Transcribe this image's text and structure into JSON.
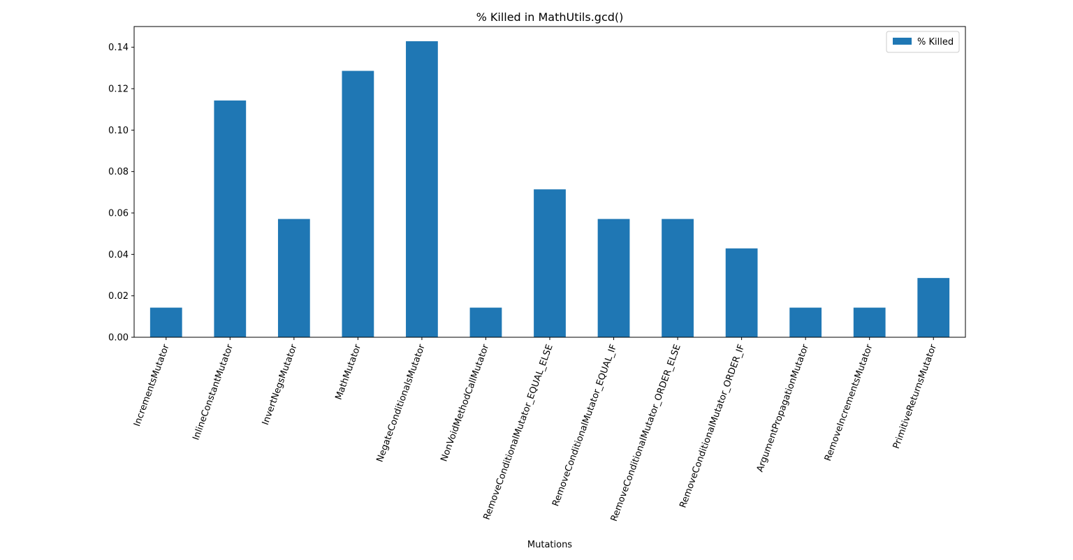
{
  "chart_data": {
    "type": "bar",
    "title": "% Killed in MathUtils.gcd()",
    "xlabel": "Mutations",
    "ylabel": "",
    "categories": [
      "IncrementsMutator",
      "InlineConstantMutator",
      "InvertNegsMutator",
      "MathMutator",
      "NegateConditionalsMutator",
      "NonVoidMethodCallMutator",
      "RemoveConditionalMutator_EQUAL_ELSE",
      "RemoveConditionalMutator_EQUAL_IF",
      "RemoveConditionalMutator_ORDER_ELSE",
      "RemoveConditionalMutator_ORDER_IF",
      "ArgumentPropagationMutator",
      "RemoveIncrementsMutator",
      "PrimitiveReturnsMutator"
    ],
    "series": [
      {
        "name": "% Killed",
        "color": "#1f77b4",
        "values": [
          0.0143,
          0.1143,
          0.0571,
          0.1286,
          0.1429,
          0.0143,
          0.0714,
          0.0571,
          0.0571,
          0.0429,
          0.0143,
          0.0143,
          0.0286
        ]
      }
    ],
    "ylim": [
      0,
      0.15
    ],
    "yticks": [
      "0.00",
      "0.02",
      "0.04",
      "0.06",
      "0.08",
      "0.10",
      "0.12",
      "0.14"
    ],
    "grid": false,
    "legend": "top-right"
  }
}
